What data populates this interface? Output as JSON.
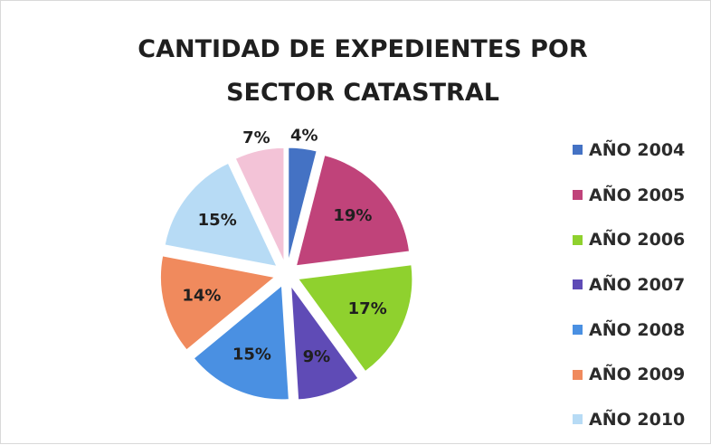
{
  "chart_data": {
    "type": "pie",
    "title": "CANTIDAD DE EXPEDIENTES POR SECTOR CATASTRAL",
    "title_lines": [
      "CANTIDAD DE EXPEDIENTES POR",
      "SECTOR CATASTRAL"
    ],
    "exploded": true,
    "legend_placement": "right",
    "slices": [
      {
        "name": "AÑO 2004",
        "value": 4,
        "label": "4%",
        "color": "#4472c4"
      },
      {
        "name": "AÑO 2005",
        "value": 19,
        "label": "19%",
        "color": "#c0437a"
      },
      {
        "name": "AÑO 2006",
        "value": 17,
        "label": "17%",
        "color": "#8fd12e"
      },
      {
        "name": "AÑO 2007",
        "value": 9,
        "label": "9%",
        "color": "#5f4bb6"
      },
      {
        "name": "AÑO 2008",
        "value": 15,
        "label": "15%",
        "color": "#4a90e2"
      },
      {
        "name": "AÑO 2009",
        "value": 14,
        "label": "14%",
        "color": "#f08a5d"
      },
      {
        "name": "AÑO 2010",
        "value": 15,
        "label": "15%",
        "color": "#b7dbf5"
      },
      {
        "name": "",
        "value": 7,
        "label": "7%",
        "color": "#f3c3d7"
      }
    ]
  }
}
